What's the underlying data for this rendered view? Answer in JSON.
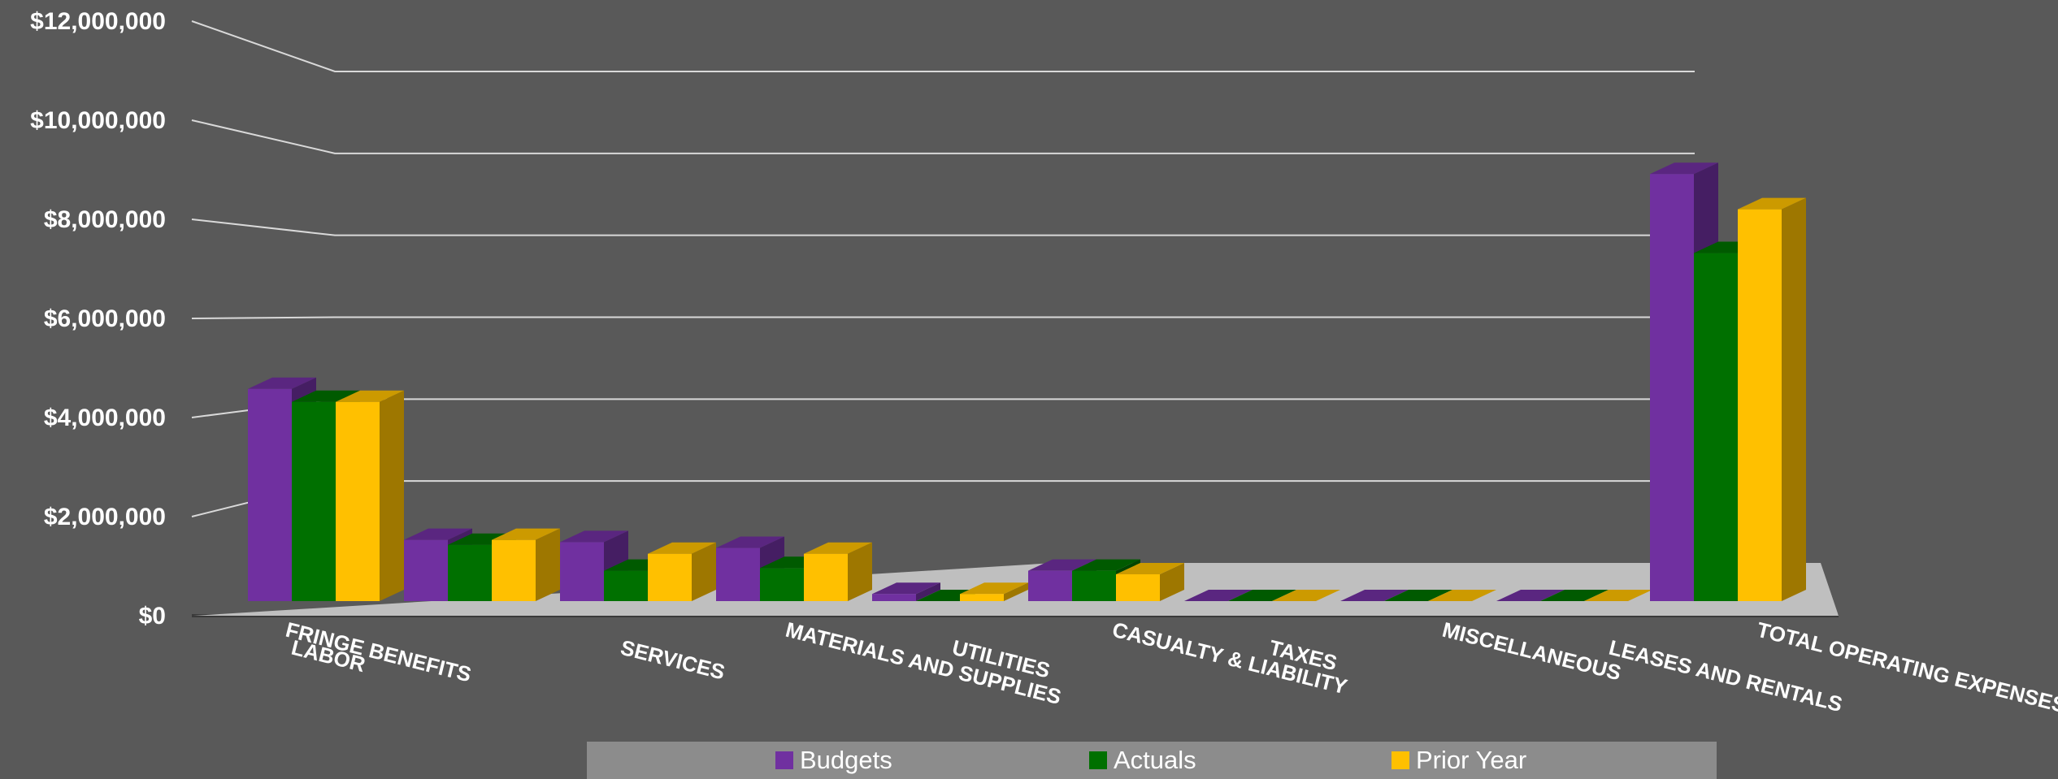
{
  "chart_data": {
    "type": "bar",
    "view": "3d-clustered-column",
    "categories": [
      "LABOR",
      "FRINGE BENEFITS",
      "SERVICES",
      "MATERIALS AND SUPPLIES",
      "UTILITIES",
      "CASUALTY & LIABILITY",
      "TAXES",
      "MISCELLANEOUS",
      "LEASES AND RENTALS",
      "TOTAL OPERATING EXPENSES"
    ],
    "series": [
      {
        "name": "Budgets",
        "color": "#7030a0",
        "values": [
          4750000,
          1370000,
          1320000,
          1190000,
          160000,
          680000,
          0,
          0,
          0,
          9560000
        ]
      },
      {
        "name": "Actuals",
        "color": "#007000",
        "values": [
          4460000,
          1260000,
          680000,
          740000,
          0,
          680000,
          0,
          0,
          0,
          7790000
        ]
      },
      {
        "name": "Prior Year",
        "color": "#ffc000",
        "values": [
          4460000,
          1370000,
          1060000,
          1060000,
          160000,
          600000,
          0,
          0,
          0,
          8770000
        ]
      }
    ],
    "yticks": [
      "$0",
      "$2,000,000",
      "$4,000,000",
      "$6,000,000",
      "$8,000,000",
      "$10,000,000",
      "$12,000,000"
    ],
    "ylim": [
      0,
      12000000
    ],
    "grid": true,
    "legend_position": "bottom",
    "title": "",
    "xlabel": "",
    "ylabel": ""
  }
}
